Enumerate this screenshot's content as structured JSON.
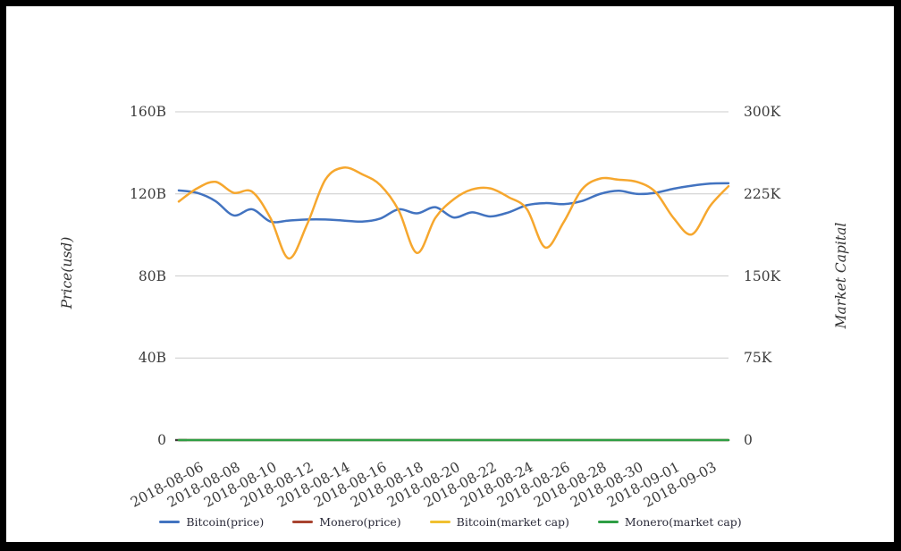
{
  "frame": {
    "border_color": "#000000",
    "background": "#ffffff"
  },
  "chart_data": {
    "type": "line",
    "title": "",
    "x": [
      "2018-08-05",
      "2018-08-06",
      "2018-08-07",
      "2018-08-08",
      "2018-08-09",
      "2018-08-10",
      "2018-08-11",
      "2018-08-12",
      "2018-08-13",
      "2018-08-14",
      "2018-08-15",
      "2018-08-16",
      "2018-08-17",
      "2018-08-18",
      "2018-08-19",
      "2018-08-20",
      "2018-08-21",
      "2018-08-22",
      "2018-08-23",
      "2018-08-24",
      "2018-08-25",
      "2018-08-26",
      "2018-08-27",
      "2018-08-28",
      "2018-08-29",
      "2018-08-30",
      "2018-08-31",
      "2018-09-01",
      "2018-09-02",
      "2018-09-03",
      "2018-09-04"
    ],
    "x_tick_labels": [
      "2018-08-06",
      "2018-08-08",
      "2018-08-10",
      "2018-08-12",
      "2018-08-14",
      "2018-08-16",
      "2018-08-18",
      "2018-08-20",
      "2018-08-22",
      "2018-08-24",
      "2018-08-26",
      "2018-08-28",
      "2018-08-30",
      "2018-09-01",
      "2018-09-03"
    ],
    "left_axis": {
      "label": "Price(usd)",
      "ticks": [
        "160B",
        "120B",
        "80B",
        "40B",
        "0"
      ],
      "tick_values": [
        160,
        120,
        80,
        40,
        0
      ],
      "range": [
        0,
        160
      ],
      "unit": "B"
    },
    "right_axis": {
      "label": "Market Capital",
      "ticks": [
        "300K",
        "225K",
        "150K",
        "75K",
        "0"
      ],
      "tick_values": [
        300,
        225,
        150,
        75,
        0
      ],
      "range": [
        0,
        300
      ],
      "unit": "K"
    },
    "grid": true,
    "legend_position": "bottom",
    "gridline_color": "#cccccc",
    "series": [
      {
        "name": "Bitcoin(price)",
        "color": "#4273C0",
        "axis": "left",
        "values": [
          121.7,
          120.5,
          116.5,
          109.5,
          112.5,
          106.5,
          107,
          107.5,
          107.5,
          107,
          106.5,
          108,
          112.5,
          110.5,
          113.5,
          108.5,
          111,
          109,
          111,
          114.5,
          115.5,
          115,
          116.5,
          120,
          121.5,
          120,
          120.5,
          122.5,
          124,
          125,
          125.2
        ]
      },
      {
        "name": "Monero(price)",
        "color": "#A8432F",
        "axis": "left",
        "values": [
          0,
          0,
          0,
          0,
          0,
          0,
          0,
          0,
          0,
          0,
          0,
          0,
          0,
          0,
          0,
          0,
          0,
          0,
          0,
          0,
          0,
          0,
          0,
          0,
          0,
          0,
          0,
          0,
          0,
          0,
          0
        ]
      },
      {
        "name": "Bitcoin(market cap)",
        "color": "#F6A72E",
        "legend_color": "#F0C030",
        "axis": "right",
        "values": [
          218,
          230,
          236,
          226,
          227,
          203,
          166,
          197,
          238,
          249,
          243,
          233,
          210,
          171,
          203,
          220,
          229,
          230,
          222,
          211,
          176,
          199,
          229,
          239,
          238,
          236,
          227,
          203,
          188,
          214,
          232
        ]
      },
      {
        "name": "Monero(market cap)",
        "color": "#2E9E44",
        "axis": "right",
        "values": [
          0,
          0,
          0,
          0,
          0,
          0,
          0,
          0,
          0,
          0,
          0,
          0,
          0,
          0,
          0,
          0,
          0,
          0,
          0,
          0,
          0,
          0,
          0,
          0,
          0,
          0,
          0,
          0,
          0,
          0,
          0
        ]
      }
    ]
  }
}
